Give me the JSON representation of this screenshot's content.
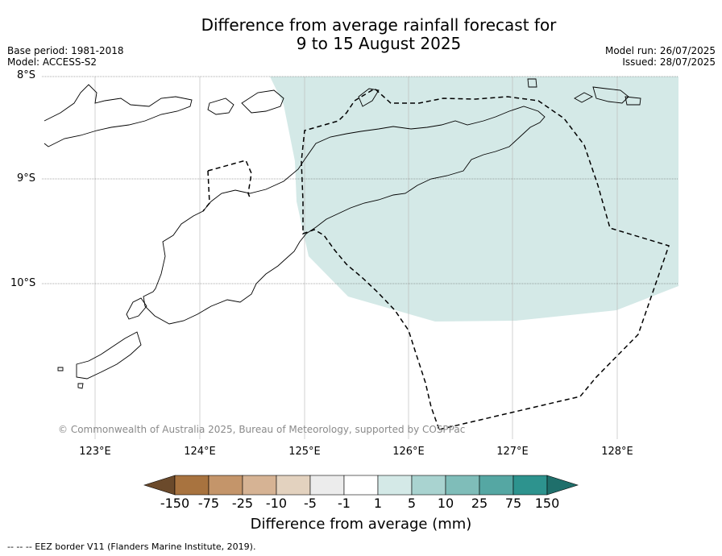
{
  "title_line1": "Difference from average rainfall forecast for",
  "title_line2": "9 to 15 August 2025",
  "meta_left": {
    "base_period": "Base period: 1981-2018",
    "model": "Model: ACCESS-S2"
  },
  "meta_right": {
    "model_run": "Model run: 26/07/2025",
    "issued": "Issued: 28/07/2025"
  },
  "lat_labels": [
    "8°S",
    "9°S",
    "10°S"
  ],
  "lon_labels": [
    "123°E",
    "124°E",
    "125°E",
    "126°E",
    "127°E",
    "128°E"
  ],
  "copyright": "© Commonwealth of Australia 2025, Bureau of Meteorology, supported by COSPPac",
  "colorbar": {
    "ticks": [
      "-150",
      "-75",
      "-25",
      "-10",
      "-5",
      "-1",
      "1",
      "5",
      "10",
      "25",
      "75",
      "150"
    ],
    "colors": [
      "#6b4a2b",
      "#a8733f",
      "#c4956a",
      "#d6b394",
      "#e3d2bf",
      "#ececec",
      "#ffffff",
      "#d4e9e7",
      "#a9d3d0",
      "#7fbdb9",
      "#55a7a3",
      "#2d938e",
      "#1f6f6b"
    ],
    "label": "Difference from average (mm)"
  },
  "map": {
    "shaded_category": "1 to 5 mm",
    "shade_color": "#d4e9e7"
  },
  "footer": "--  --  -- EEZ border V11 (Flanders Marine Institute, 2019)."
}
